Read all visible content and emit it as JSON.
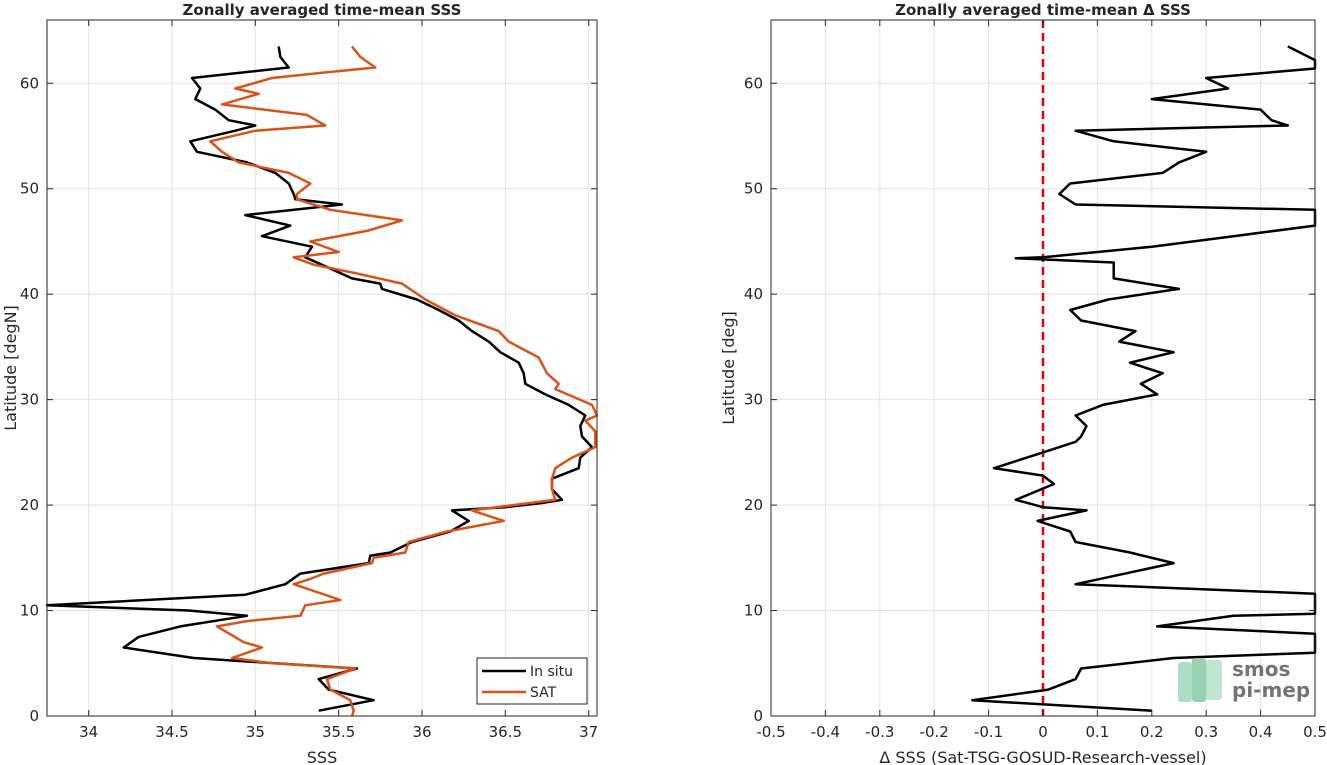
{
  "chart_data": [
    {
      "type": "line",
      "title": "Zonally averaged time-mean SSS",
      "xlabel": "SSS",
      "ylabel": "Latitude [degN]",
      "xlim": [
        33.75,
        37.05
      ],
      "ylim": [
        0,
        66
      ],
      "xticks": [
        "34",
        "34.5",
        "35",
        "35.5",
        "36",
        "36.5",
        "37"
      ],
      "yticks": [
        "0",
        "10",
        "20",
        "30",
        "40",
        "50",
        "60"
      ],
      "grid": true,
      "legend": "bottom-right",
      "series": [
        {
          "name": "In situ",
          "color": "#000000",
          "points": [
            [
              35.14,
              63.5
            ],
            [
              35.15,
              62.5
            ],
            [
              35.2,
              61.5
            ],
            [
              34.62,
              60.5
            ],
            [
              34.67,
              59.5
            ],
            [
              34.64,
              58.5
            ],
            [
              34.76,
              57.5
            ],
            [
              34.84,
              56.5
            ],
            [
              35.0,
              56.0
            ],
            [
              34.88,
              55.5
            ],
            [
              34.61,
              54.5
            ],
            [
              34.65,
              53.5
            ],
            [
              34.95,
              52.5
            ],
            [
              35.12,
              51.5
            ],
            [
              35.2,
              50.5
            ],
            [
              35.23,
              49.5
            ],
            [
              35.24,
              49.0
            ],
            [
              35.52,
              48.5
            ],
            [
              34.94,
              47.5
            ],
            [
              35.21,
              46.5
            ],
            [
              35.04,
              45.5
            ],
            [
              35.34,
              44.5
            ],
            [
              35.3,
              43.5
            ],
            [
              35.44,
              42.5
            ],
            [
              35.58,
              41.5
            ],
            [
              35.75,
              41.0
            ],
            [
              35.76,
              40.5
            ],
            [
              35.97,
              39.5
            ],
            [
              36.1,
              38.5
            ],
            [
              36.22,
              37.5
            ],
            [
              36.3,
              36.5
            ],
            [
              36.4,
              35.5
            ],
            [
              36.47,
              34.5
            ],
            [
              36.58,
              33.5
            ],
            [
              36.61,
              32.5
            ],
            [
              36.62,
              31.5
            ],
            [
              36.74,
              30.5
            ],
            [
              36.88,
              29.5
            ],
            [
              36.98,
              28.5
            ],
            [
              36.95,
              27.5
            ],
            [
              36.96,
              26.5
            ],
            [
              37.02,
              25.5
            ],
            [
              36.95,
              24.5
            ],
            [
              36.94,
              23.5
            ],
            [
              36.78,
              22.5
            ],
            [
              36.78,
              21.5
            ],
            [
              36.84,
              20.5
            ],
            [
              36.72,
              20.2
            ],
            [
              36.5,
              19.8
            ],
            [
              36.18,
              19.5
            ],
            [
              36.28,
              18.5
            ],
            [
              36.17,
              17.5
            ],
            [
              35.94,
              16.5
            ],
            [
              35.81,
              15.5
            ],
            [
              35.69,
              15.2
            ],
            [
              35.68,
              14.5
            ],
            [
              35.27,
              13.5
            ],
            [
              35.18,
              12.5
            ],
            [
              34.94,
              11.5
            ],
            [
              33.75,
              10.5
            ],
            [
              34.6,
              10.0
            ],
            [
              34.95,
              9.5
            ],
            [
              34.55,
              8.5
            ],
            [
              34.3,
              7.5
            ],
            [
              34.21,
              6.5
            ],
            [
              34.63,
              5.5
            ],
            [
              35.61,
              4.5
            ],
            [
              35.38,
              3.5
            ],
            [
              35.44,
              2.5
            ],
            [
              35.71,
              1.5
            ],
            [
              35.38,
              0.5
            ]
          ]
        },
        {
          "name": "SAT",
          "color": "#d95319",
          "points": [
            [
              35.58,
              63.5
            ],
            [
              35.63,
              62.5
            ],
            [
              35.72,
              61.5
            ],
            [
              35.4,
              61.0
            ],
            [
              35.1,
              60.5
            ],
            [
              34.88,
              59.5
            ],
            [
              35.02,
              59.0
            ],
            [
              34.8,
              58.0
            ],
            [
              35.31,
              57.0
            ],
            [
              35.42,
              56.0
            ],
            [
              35.0,
              55.5
            ],
            [
              34.73,
              54.5
            ],
            [
              34.8,
              53.5
            ],
            [
              34.9,
              52.5
            ],
            [
              35.2,
              51.5
            ],
            [
              35.33,
              50.5
            ],
            [
              35.25,
              49.5
            ],
            [
              35.25,
              49.0
            ],
            [
              35.45,
              48.0
            ],
            [
              35.88,
              47.0
            ],
            [
              35.67,
              46.0
            ],
            [
              35.33,
              45.0
            ],
            [
              35.5,
              44.0
            ],
            [
              35.23,
              43.5
            ],
            [
              35.35,
              42.8
            ],
            [
              35.6,
              42.0
            ],
            [
              35.88,
              41.0
            ],
            [
              36.02,
              39.5
            ],
            [
              36.2,
              38.0
            ],
            [
              36.46,
              36.5
            ],
            [
              36.52,
              35.5
            ],
            [
              36.7,
              34.0
            ],
            [
              36.75,
              32.5
            ],
            [
              36.82,
              31.5
            ],
            [
              36.8,
              31.0
            ],
            [
              37.02,
              29.5
            ],
            [
              37.05,
              28.5
            ],
            [
              36.98,
              28.0
            ],
            [
              37.04,
              27.0
            ],
            [
              37.04,
              25.5
            ],
            [
              36.9,
              24.5
            ],
            [
              36.8,
              23.5
            ],
            [
              36.78,
              22.5
            ],
            [
              36.78,
              21.5
            ],
            [
              36.8,
              20.5
            ],
            [
              36.3,
              19.5
            ],
            [
              36.49,
              18.5
            ],
            [
              36.15,
              17.5
            ],
            [
              35.92,
              16.5
            ],
            [
              35.9,
              15.5
            ],
            [
              35.71,
              15.0
            ],
            [
              35.7,
              14.5
            ],
            [
              35.41,
              13.5
            ],
            [
              35.33,
              13.0
            ],
            [
              35.23,
              12.5
            ],
            [
              35.51,
              11.0
            ],
            [
              35.3,
              10.5
            ],
            [
              35.27,
              9.5
            ],
            [
              34.95,
              9.0
            ],
            [
              34.77,
              8.5
            ],
            [
              34.93,
              7.0
            ],
            [
              35.04,
              6.5
            ],
            [
              34.86,
              5.5
            ],
            [
              35.1,
              5.0
            ],
            [
              35.6,
              4.5
            ],
            [
              35.43,
              3.5
            ],
            [
              35.45,
              2.5
            ],
            [
              35.57,
              1.5
            ],
            [
              35.59,
              0.5
            ],
            [
              35.58,
              0.0
            ]
          ]
        }
      ]
    },
    {
      "type": "line",
      "title": "Zonally averaged time-mean Δ SSS",
      "xlabel": "Δ SSS (Sat-TSG-GOSUD-Research-vessel)",
      "ylabel": "Latitude [deg]",
      "xlim": [
        -0.5,
        0.5
      ],
      "ylim": [
        0,
        66
      ],
      "xticks": [
        "-0.5",
        "-0.4",
        "-0.3",
        "-0.2",
        "-0.1",
        "0",
        "0.1",
        "0.2",
        "0.3",
        "0.4",
        "0.5"
      ],
      "yticks": [
        "0",
        "10",
        "20",
        "30",
        "40",
        "50",
        "60"
      ],
      "grid": true,
      "reference_line": {
        "x": 0,
        "color": "#e00000",
        "style": "dashed"
      },
      "series": [
        {
          "color": "#000000",
          "points": [
            [
              0.45,
              63.5
            ],
            [
              0.5,
              62.2
            ],
            [
              0.5,
              61.4
            ],
            [
              0.3,
              60.5
            ],
            [
              0.34,
              59.5
            ],
            [
              0.2,
              58.5
            ],
            [
              0.4,
              57.5
            ],
            [
              0.42,
              56.5
            ],
            [
              0.45,
              56.0
            ],
            [
              0.06,
              55.5
            ],
            [
              0.13,
              54.5
            ],
            [
              0.3,
              53.5
            ],
            [
              0.25,
              52.5
            ],
            [
              0.22,
              51.5
            ],
            [
              0.05,
              50.5
            ],
            [
              0.03,
              49.5
            ],
            [
              0.06,
              48.5
            ],
            [
              0.5,
              48.0
            ],
            [
              0.5,
              46.5
            ],
            [
              0.35,
              45.5
            ],
            [
              0.2,
              44.5
            ],
            [
              0.0,
              43.5
            ],
            [
              -0.05,
              43.4
            ],
            [
              0.13,
              43.0
            ],
            [
              0.13,
              41.5
            ],
            [
              0.25,
              40.5
            ],
            [
              0.12,
              39.5
            ],
            [
              0.05,
              38.5
            ],
            [
              0.07,
              37.5
            ],
            [
              0.17,
              36.5
            ],
            [
              0.14,
              35.5
            ],
            [
              0.24,
              34.5
            ],
            [
              0.16,
              33.5
            ],
            [
              0.22,
              32.5
            ],
            [
              0.18,
              31.5
            ],
            [
              0.21,
              30.5
            ],
            [
              0.11,
              29.5
            ],
            [
              0.06,
              28.5
            ],
            [
              0.08,
              27.5
            ],
            [
              0.07,
              26.5
            ],
            [
              0.06,
              26.0
            ],
            [
              0.0,
              25.0
            ],
            [
              -0.09,
              23.5
            ],
            [
              0.0,
              22.8
            ],
            [
              0.02,
              22.0
            ],
            [
              -0.05,
              20.5
            ],
            [
              0.0,
              19.8
            ],
            [
              0.08,
              19.5
            ],
            [
              -0.01,
              18.5
            ],
            [
              0.05,
              17.5
            ],
            [
              0.06,
              16.5
            ],
            [
              0.16,
              15.5
            ],
            [
              0.24,
              14.5
            ],
            [
              0.06,
              12.5
            ],
            [
              0.5,
              11.6
            ],
            [
              0.5,
              9.7
            ],
            [
              0.35,
              9.5
            ],
            [
              0.21,
              8.5
            ],
            [
              0.5,
              7.8
            ],
            [
              0.5,
              6.0
            ],
            [
              0.24,
              5.5
            ],
            [
              0.07,
              4.5
            ],
            [
              0.06,
              3.5
            ],
            [
              0.01,
              2.5
            ],
            [
              -0.13,
              1.5
            ],
            [
              0.2,
              0.5
            ]
          ]
        }
      ]
    }
  ],
  "legend": {
    "items": [
      "In situ",
      "SAT"
    ]
  },
  "watermark": {
    "line1": "smos",
    "line2": "pi-mep"
  },
  "colors": {
    "insitu": "#000000",
    "sat": "#d95319",
    "zero_line": "#e00000",
    "grid": "#e3e3e3",
    "axis": "#262626"
  }
}
